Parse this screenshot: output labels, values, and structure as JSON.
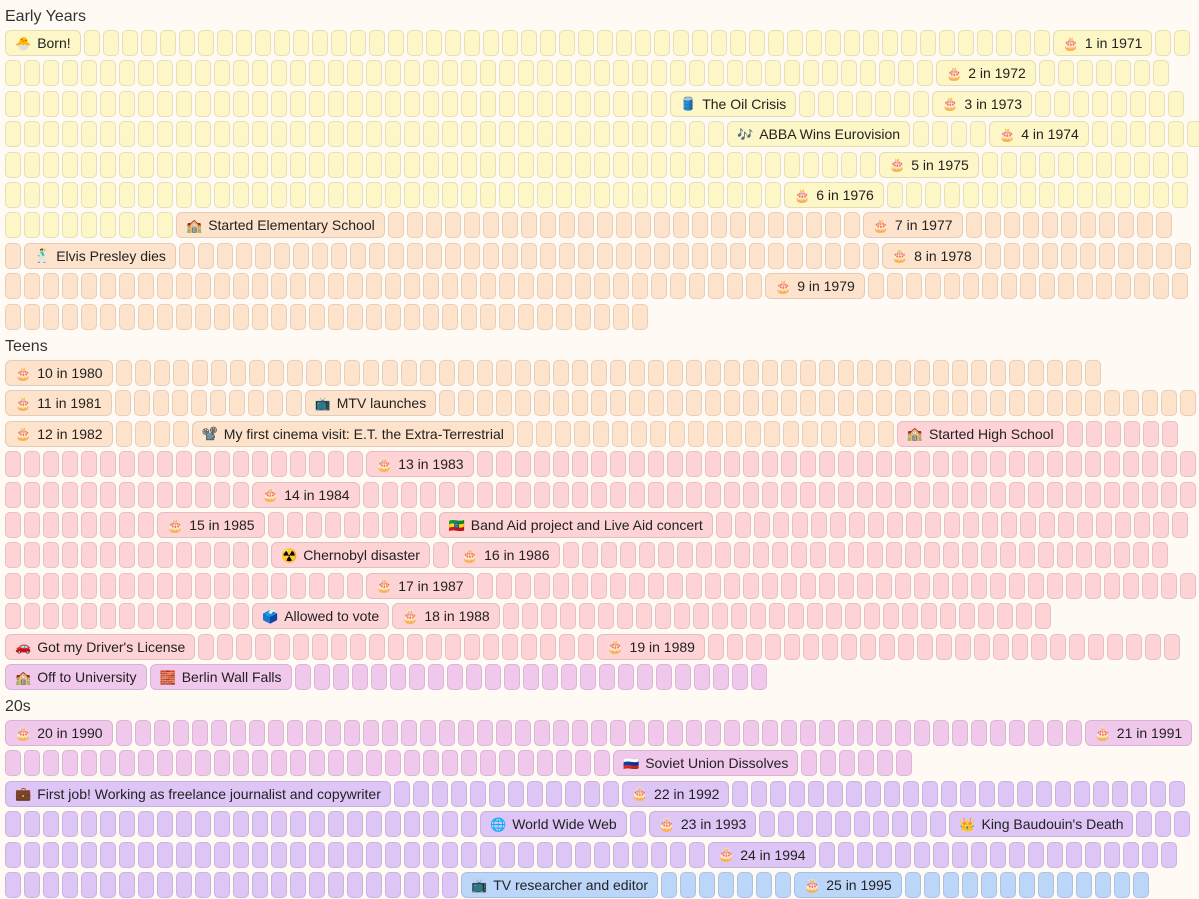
{
  "sections": [
    {
      "title": "Early Years",
      "rows": [
        [
          [
            "c",
            "yellow",
            0
          ],
          [
            "e",
            "yellow",
            "🐣",
            "Born!"
          ],
          [
            "c",
            "yellow",
            51
          ],
          [
            "e",
            "yellow",
            "🎂",
            "1 in 1971"
          ],
          [
            "c",
            "yellow",
            2
          ]
        ],
        [
          [
            "c",
            "yellow",
            49
          ],
          [
            "e",
            "yellow",
            "🎂",
            "2 in 1972"
          ],
          [
            "c",
            "yellow",
            7
          ]
        ],
        [
          [
            "c",
            "yellow",
            35
          ],
          [
            "e",
            "yellow",
            "🛢️",
            "The Oil Crisis"
          ],
          [
            "c",
            "yellow",
            7
          ],
          [
            "e",
            "yellow",
            "🎂",
            "3 in 1973"
          ],
          [
            "c",
            "yellow",
            8
          ]
        ],
        [
          [
            "c",
            "yellow",
            38
          ],
          [
            "e",
            "yellow",
            "🎶",
            "ABBA Wins Eurovision"
          ],
          [
            "c",
            "yellow",
            4
          ],
          [
            "e",
            "yellow",
            "🎂",
            "4 in 1974"
          ],
          [
            "c",
            "yellow",
            6
          ]
        ],
        [
          [
            "c",
            "yellow",
            46
          ],
          [
            "e",
            "yellow",
            "🎂",
            "5 in 1975"
          ],
          [
            "c",
            "yellow",
            11
          ]
        ],
        [
          [
            "c",
            "yellow",
            41
          ],
          [
            "e",
            "yellow",
            "🎂",
            "6 in 1976"
          ],
          [
            "c",
            "yellow",
            16
          ]
        ],
        [
          [
            "c",
            "yellow",
            9
          ],
          [
            "e",
            "peach",
            "🏫",
            "Started Elementary School"
          ],
          [
            "c",
            "peach",
            25
          ],
          [
            "e",
            "peach",
            "🎂",
            "7 in 1977"
          ],
          [
            "c",
            "peach",
            11
          ]
        ],
        [
          [
            "c",
            "peach",
            1
          ],
          [
            "e",
            "peach",
            "🕺",
            "Elvis Presley dies"
          ],
          [
            "c",
            "peach",
            37
          ],
          [
            "e",
            "peach",
            "🎂",
            "8 in 1978"
          ],
          [
            "c",
            "peach",
            11
          ]
        ],
        [
          [
            "c",
            "peach",
            40
          ],
          [
            "e",
            "peach",
            "🎂",
            "9 in 1979"
          ],
          [
            "c",
            "peach",
            17
          ]
        ],
        [
          [
            "c",
            "peach",
            34
          ]
        ]
      ]
    },
    {
      "title": "Teens",
      "rows": [
        [
          [
            "e",
            "peach",
            "🎂",
            "10 in 1980"
          ],
          [
            "c",
            "peach",
            52
          ]
        ],
        [
          [
            "e",
            "peach",
            "🎂",
            "11 in 1981"
          ],
          [
            "c",
            "peach",
            10
          ],
          [
            "e",
            "peach",
            "📺",
            "MTV launches"
          ],
          [
            "c",
            "peach",
            40
          ]
        ],
        [
          [
            "e",
            "peach",
            "🎂",
            "12 in 1982"
          ],
          [
            "c",
            "peach",
            4
          ],
          [
            "e",
            "peach",
            "📽️",
            "My first cinema visit: E.T. the Extra-Terrestrial"
          ],
          [
            "c",
            "peach",
            20
          ],
          [
            "e",
            "pink",
            "🏫",
            "Started High School"
          ],
          [
            "c",
            "pink",
            6
          ]
        ],
        [
          [
            "c",
            "pink",
            19
          ],
          [
            "e",
            "pink",
            "🎂",
            "13 in 1983"
          ],
          [
            "c",
            "pink",
            38
          ]
        ],
        [
          [
            "c",
            "pink",
            13
          ],
          [
            "e",
            "pink",
            "🎂",
            "14 in 1984"
          ],
          [
            "c",
            "pink",
            44
          ]
        ],
        [
          [
            "c",
            "pink",
            8
          ],
          [
            "e",
            "pink",
            "🎂",
            "15 in 1985"
          ],
          [
            "c",
            "pink",
            9
          ],
          [
            "e",
            "pink",
            "🇪🇹",
            "Band Aid project and Live Aid concert"
          ],
          [
            "c",
            "pink",
            25
          ]
        ],
        [
          [
            "c",
            "pink",
            14
          ],
          [
            "e",
            "pink",
            "☢️",
            "Chernobyl disaster"
          ],
          [
            "c",
            "pink",
            1
          ],
          [
            "e",
            "pink",
            "🎂",
            "16 in 1986"
          ],
          [
            "c",
            "pink",
            32
          ]
        ],
        [
          [
            "c",
            "pink",
            19
          ],
          [
            "e",
            "pink",
            "🎂",
            "17 in 1987"
          ],
          [
            "c",
            "pink",
            38
          ]
        ],
        [
          [
            "c",
            "pink",
            13
          ],
          [
            "e",
            "pink",
            "🗳️",
            "Allowed to vote"
          ],
          [
            "e",
            "pink",
            "🎂",
            "18 in 1988"
          ],
          [
            "c",
            "pink",
            29
          ]
        ],
        [
          [
            "e",
            "pink",
            "🚗",
            "Got my Driver's License"
          ],
          [
            "c",
            "pink",
            21
          ],
          [
            "e",
            "pink",
            "🎂",
            "19 in 1989"
          ],
          [
            "c",
            "pink",
            25
          ]
        ],
        [
          [
            "e",
            "orchid",
            "🏫",
            "Off to University"
          ],
          [
            "e",
            "orchid",
            "🧱",
            "Berlin Wall Falls"
          ],
          [
            "c",
            "orchid",
            25
          ]
        ]
      ]
    },
    {
      "title": "20s",
      "rows": [
        [
          [
            "e",
            "orchid",
            "🎂",
            "20 in 1990"
          ],
          [
            "c",
            "orchid",
            51
          ],
          [
            "e",
            "orchid",
            "🎂",
            "21 in 1991"
          ]
        ],
        [
          [
            "c",
            "orchid",
            32
          ],
          [
            "e",
            "orchid",
            "🇷🇺",
            "Soviet Union Dissolves"
          ],
          [
            "c",
            "orchid",
            6
          ]
        ],
        [
          [
            "e",
            "lav",
            "💼",
            "First job! Working as freelance journalist and copywriter"
          ],
          [
            "c",
            "lav",
            12
          ],
          [
            "e",
            "lav",
            "🎂",
            "22 in 1992"
          ],
          [
            "c",
            "lav",
            24
          ]
        ],
        [
          [
            "c",
            "lav",
            25
          ],
          [
            "e",
            "lav",
            "🌐",
            "World Wide Web"
          ],
          [
            "c",
            "lav",
            1
          ],
          [
            "e",
            "lav",
            "🎂",
            "23 in 1993"
          ],
          [
            "c",
            "lav",
            10
          ],
          [
            "e",
            "lav",
            "👑",
            "King Baudouin's Death"
          ],
          [
            "c",
            "lav",
            3
          ]
        ],
        [
          [
            "c",
            "lav",
            37
          ],
          [
            "e",
            "lav",
            "🎂",
            "24 in 1994"
          ],
          [
            "c",
            "lav",
            19
          ]
        ],
        [
          [
            "c",
            "lav",
            24
          ],
          [
            "e",
            "blue",
            "📺",
            "TV researcher and editor"
          ],
          [
            "c",
            "blue",
            7
          ],
          [
            "e",
            "blue",
            "🎂",
            "25 in 1995"
          ],
          [
            "c",
            "blue",
            13
          ]
        ]
      ]
    }
  ],
  "colors": {
    "yellow": "#fdf6c6",
    "peach": "#fde3cc",
    "pink": "#fdd3d6",
    "orchid": "#f0c8ec",
    "lav": "#ddc6f6",
    "blue": "#bcd6fa"
  }
}
